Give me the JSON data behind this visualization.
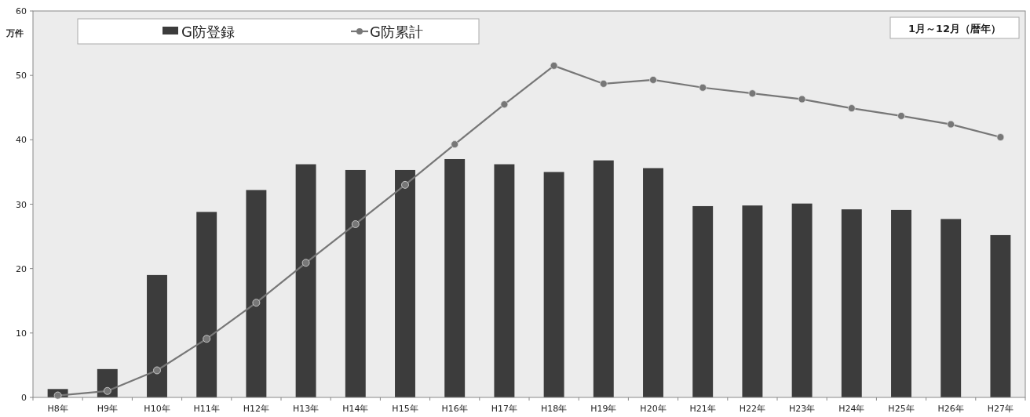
{
  "chart_data": {
    "type": "bar",
    "ylabel": "万件",
    "categories": [
      "H8年",
      "H9年",
      "H10年",
      "H11年",
      "H12年",
      "H13年",
      "H14年",
      "H15年",
      "H16年",
      "H17年",
      "H18年",
      "H19年",
      "H20年",
      "H21年",
      "H22年",
      "H23年",
      "H24年",
      "H25年",
      "H26年",
      "H27年"
    ],
    "series": [
      {
        "name": "G防登録",
        "color": "#3c3c3c",
        "values": [
          1.3,
          4.4,
          19.0,
          28.8,
          32.2,
          36.2,
          35.3,
          35.3,
          37.0,
          36.2,
          35.0,
          36.8,
          35.6,
          29.7,
          29.8,
          30.1,
          29.2,
          29.1,
          27.7,
          25.2
        ]
      },
      {
        "name": "G防累計",
        "type": "line",
        "color": "#777777",
        "marker": "circle",
        "values": [
          0.3,
          1.0,
          4.2,
          9.1,
          14.7,
          20.9,
          26.9,
          33.0,
          39.3,
          45.5,
          51.5,
          48.7,
          49.3,
          48.1,
          47.2,
          46.3,
          44.9,
          43.7,
          42.4,
          40.4
        ]
      }
    ],
    "ylim": [
      0,
      60
    ],
    "yticks": [
      0,
      10,
      20,
      30,
      40,
      50,
      60
    ],
    "grid": false,
    "legend": "top left",
    "annotations": [
      "1月～12月（暦年）"
    ]
  }
}
